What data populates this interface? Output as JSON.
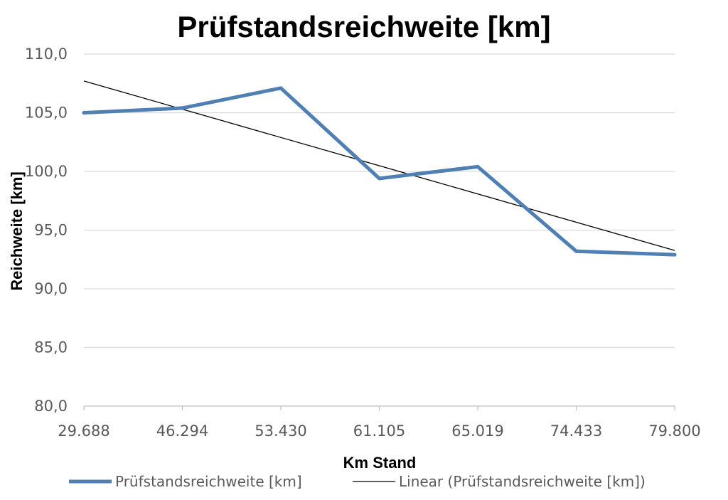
{
  "chart_data": {
    "type": "line",
    "title": "Prüfstandsreichweite [km]",
    "xlabel": "Km Stand",
    "ylabel": "Reichweite [km]",
    "categories": [
      "29.688",
      "46.294",
      "53.430",
      "61.105",
      "65.019",
      "74.433",
      "79.800"
    ],
    "series": [
      {
        "name": "Prüfstandsreichweite [km]",
        "values": [
          105.0,
          105.4,
          107.1,
          99.4,
          100.4,
          93.2,
          92.9
        ],
        "color": "#4f7fb3"
      }
    ],
    "trendline": {
      "name": "Linear (Prüfstandsreichweite [km])",
      "type": "linear",
      "color": "#000000"
    },
    "ylim": [
      80,
      110
    ],
    "yticks": [
      "80,0",
      "85,0",
      "90,0",
      "95,0",
      "100,0",
      "105,0",
      "110,0"
    ],
    "grid": true,
    "legend_position": "bottom"
  }
}
